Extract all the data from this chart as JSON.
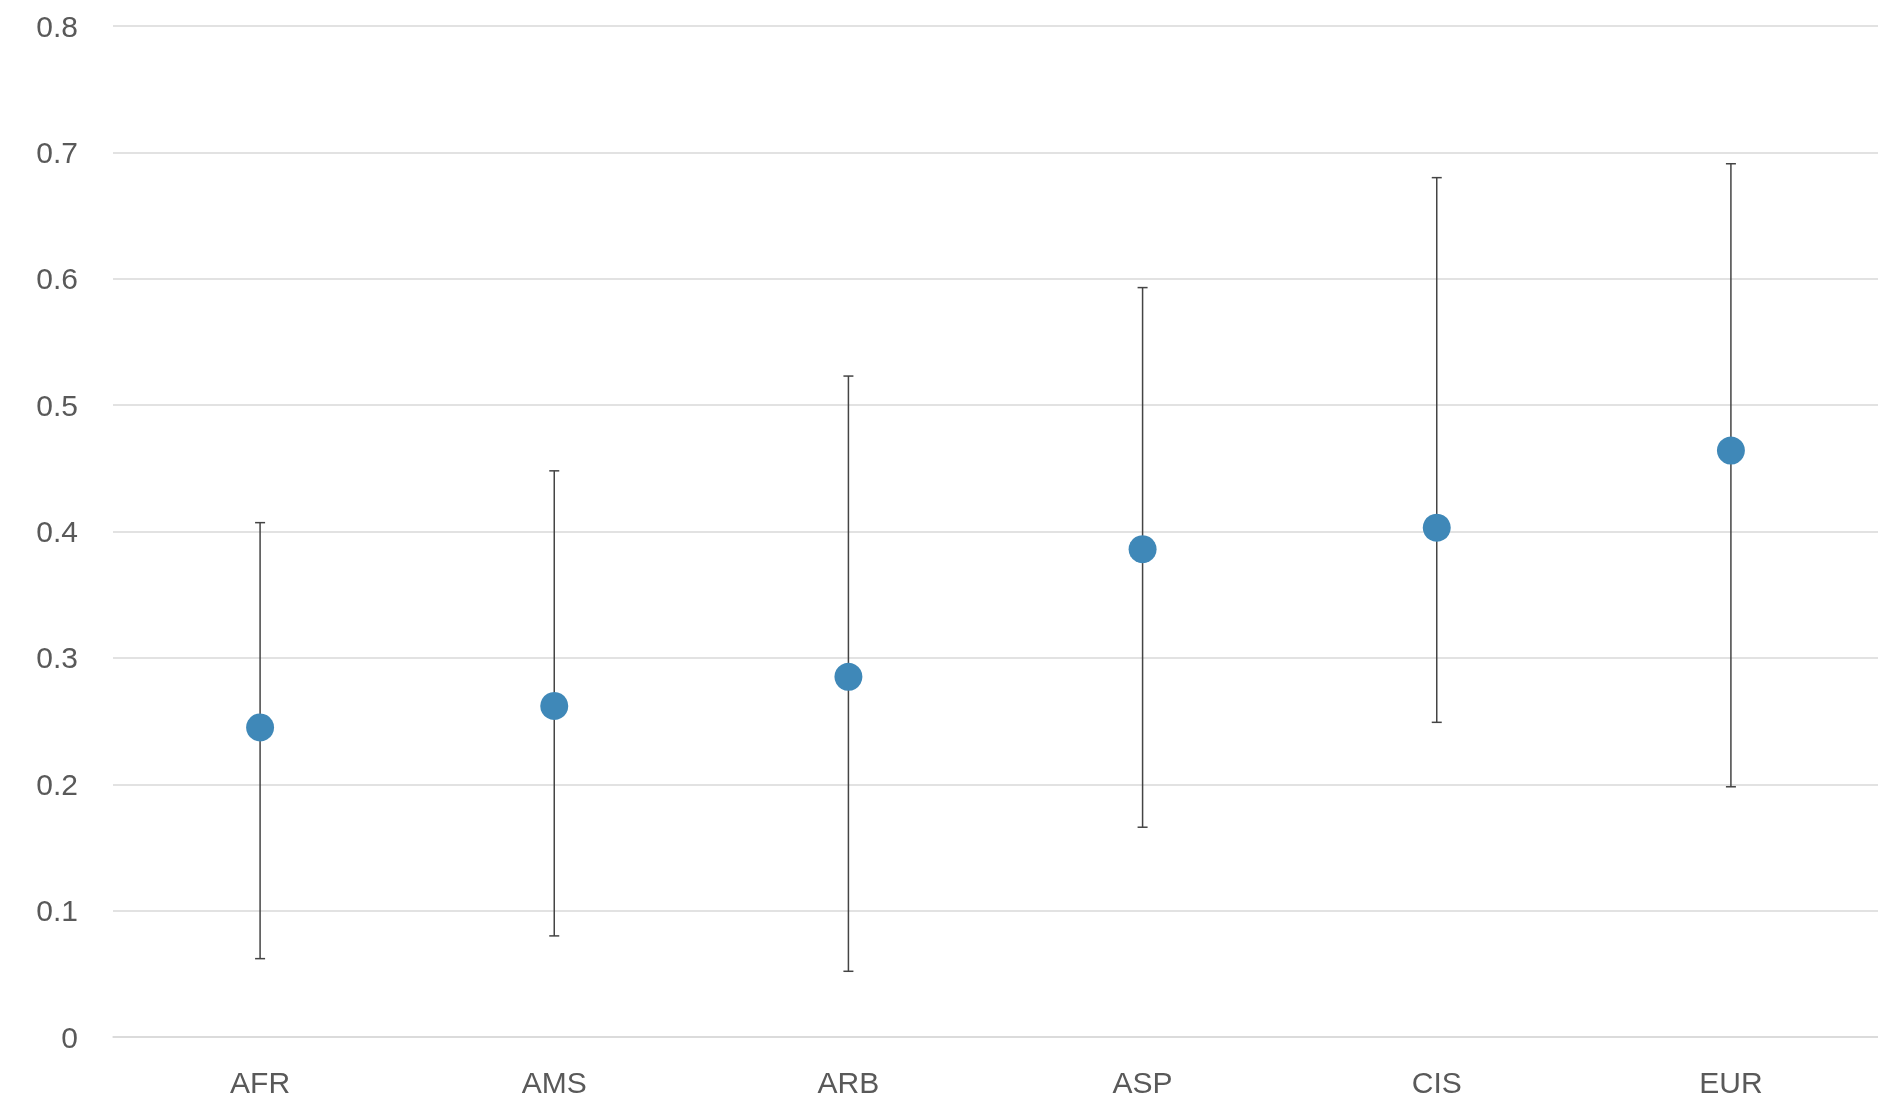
{
  "chart_data": {
    "type": "scatter",
    "categories": [
      "AFR",
      "AMS",
      "ARB",
      "ASP",
      "CIS",
      "EUR"
    ],
    "series": [
      {
        "color": "#3f88b8",
        "values": [
          0.245,
          0.262,
          0.285,
          0.386,
          0.403,
          0.464
        ],
        "errors": [
          [
            0.062,
            0.407
          ],
          [
            0.08,
            0.448
          ],
          [
            0.052,
            0.523
          ],
          [
            0.166,
            0.593
          ],
          [
            0.249,
            0.68
          ],
          [
            0.198,
            0.691
          ]
        ]
      }
    ],
    "ylim": [
      0,
      0.8
    ],
    "yticks": [
      0,
      0.1,
      0.2,
      0.3,
      0.4,
      0.5,
      0.6,
      0.7,
      0.8
    ],
    "grid": "y",
    "marker": "circle"
  }
}
